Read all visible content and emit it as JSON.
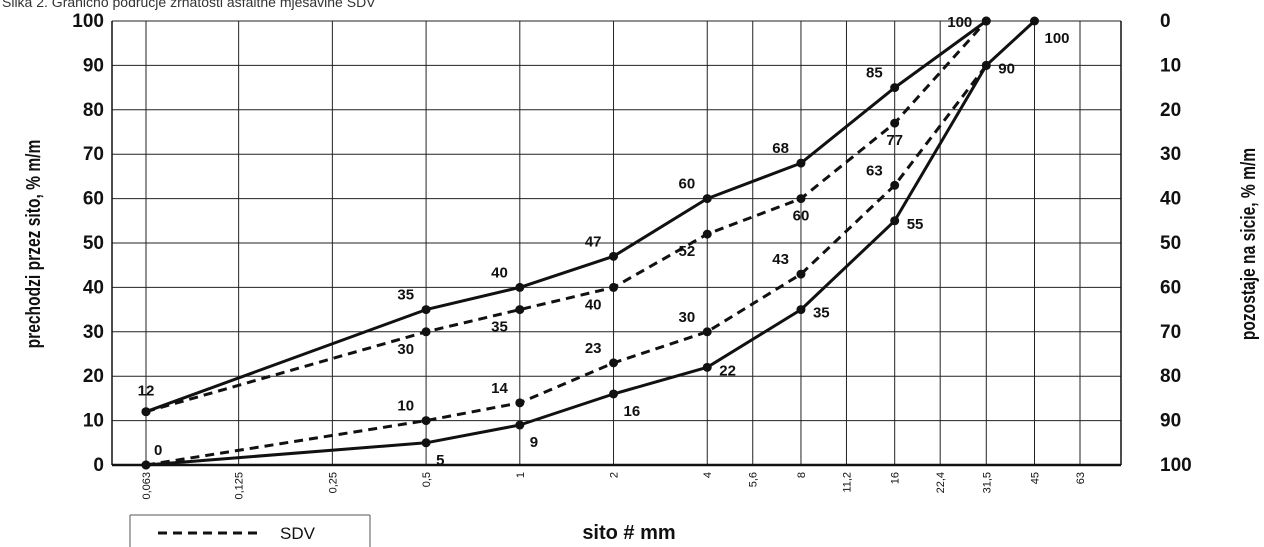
{
  "caption_top": "Slika 2. Granično područje zrnatosti asfaltne mješavine SDV",
  "chart_data": {
    "type": "line",
    "x_ticks": [
      "0,063",
      "0,125",
      "0,25",
      "0,5",
      "1",
      "2",
      "4",
      "5,6",
      "8",
      "11,2",
      "16",
      "22,4",
      "31,5",
      "45",
      "63"
    ],
    "xlabel": "sito # mm",
    "ylabel": "prechodzi przez sito, % m/m",
    "ylabel_right": "pozostaje na sicie, % m/m",
    "ylim": [
      0,
      100
    ],
    "y_ticks_left": [
      "0",
      "10",
      "20",
      "30",
      "40",
      "50",
      "60",
      "70",
      "80",
      "90",
      "100"
    ],
    "y_ticks_right": [
      "100",
      "90",
      "80",
      "70",
      "60",
      "50",
      "40",
      "30",
      "20",
      "10",
      "0"
    ],
    "grid": true,
    "legend_position": "bottom-left",
    "legend": [
      {
        "label": "SDV",
        "style": "dashed"
      }
    ],
    "series": [
      {
        "style": "solid",
        "x": [
          "0,063",
          "0,5",
          "1",
          "2",
          "4",
          "8",
          "16",
          "31,5"
        ],
        "values": [
          12,
          35,
          40,
          47,
          60,
          68,
          85,
          100
        ]
      },
      {
        "style": "solid",
        "x": [
          "0,063",
          "0,5",
          "1",
          "2",
          "4",
          "8",
          "16",
          "31,5",
          "45"
        ],
        "values": [
          0,
          5,
          9,
          16,
          22,
          35,
          55,
          90,
          100
        ]
      },
      {
        "name": "SDV",
        "style": "dashed",
        "x": [
          "0,063",
          "0,5",
          "1",
          "2",
          "4",
          "8",
          "16",
          "31,5"
        ],
        "values": [
          12,
          30,
          35,
          40,
          52,
          60,
          77,
          100
        ]
      },
      {
        "name": "SDV",
        "style": "dashed",
        "x": [
          "0,063",
          "0,5",
          "1",
          "2",
          "4",
          "8",
          "16",
          "31,5"
        ],
        "values": [
          0,
          10,
          14,
          23,
          30,
          43,
          63,
          90
        ]
      }
    ],
    "data_labels": [
      {
        "x": "0,063",
        "y": 12,
        "text": "12",
        "pos": "above"
      },
      {
        "x": "0,5",
        "y": 35,
        "text": "35",
        "pos": "above-left"
      },
      {
        "x": "1",
        "y": 40,
        "text": "40",
        "pos": "above-left"
      },
      {
        "x": "2",
        "y": 47,
        "text": "47",
        "pos": "above-left"
      },
      {
        "x": "4",
        "y": 60,
        "text": "60",
        "pos": "above-left"
      },
      {
        "x": "8",
        "y": 68,
        "text": "68",
        "pos": "above-left"
      },
      {
        "x": "16",
        "y": 85,
        "text": "85",
        "pos": "above-left"
      },
      {
        "x": "31,5",
        "y": 100,
        "text": "100",
        "pos": "left"
      },
      {
        "x": "0,063",
        "y": 0,
        "text": "0",
        "pos": "above-right"
      },
      {
        "x": "0,5",
        "y": 5,
        "text": "5",
        "pos": "below-right"
      },
      {
        "x": "1",
        "y": 9,
        "text": "9",
        "pos": "below-right"
      },
      {
        "x": "2",
        "y": 16,
        "text": "16",
        "pos": "below-right"
      },
      {
        "x": "4",
        "y": 22,
        "text": "22",
        "pos": "right"
      },
      {
        "x": "8",
        "y": 35,
        "text": "35",
        "pos": "right"
      },
      {
        "x": "16",
        "y": 55,
        "text": "55",
        "pos": "right"
      },
      {
        "x": "31,5",
        "y": 90,
        "text": "90",
        "pos": "right"
      },
      {
        "x": "45",
        "y": 100,
        "text": "100",
        "pos": "below-right"
      },
      {
        "x": "0,5",
        "y": 30,
        "text": "30",
        "pos": "below-left"
      },
      {
        "x": "1",
        "y": 35,
        "text": "35",
        "pos": "below-left"
      },
      {
        "x": "2",
        "y": 40,
        "text": "40",
        "pos": "below-left"
      },
      {
        "x": "4",
        "y": 52,
        "text": "52",
        "pos": "below-left"
      },
      {
        "x": "8",
        "y": 60,
        "text": "60",
        "pos": "below"
      },
      {
        "x": "16",
        "y": 77,
        "text": "77",
        "pos": "below"
      },
      {
        "x": "0,5",
        "y": 10,
        "text": "10",
        "pos": "above-left"
      },
      {
        "x": "1",
        "y": 14,
        "text": "14",
        "pos": "above-left"
      },
      {
        "x": "2",
        "y": 23,
        "text": "23",
        "pos": "above-left"
      },
      {
        "x": "4",
        "y": 30,
        "text": "30",
        "pos": "above-left"
      },
      {
        "x": "8",
        "y": 43,
        "text": "43",
        "pos": "above-left"
      },
      {
        "x": "16",
        "y": 63,
        "text": "63",
        "pos": "above-left"
      }
    ]
  }
}
